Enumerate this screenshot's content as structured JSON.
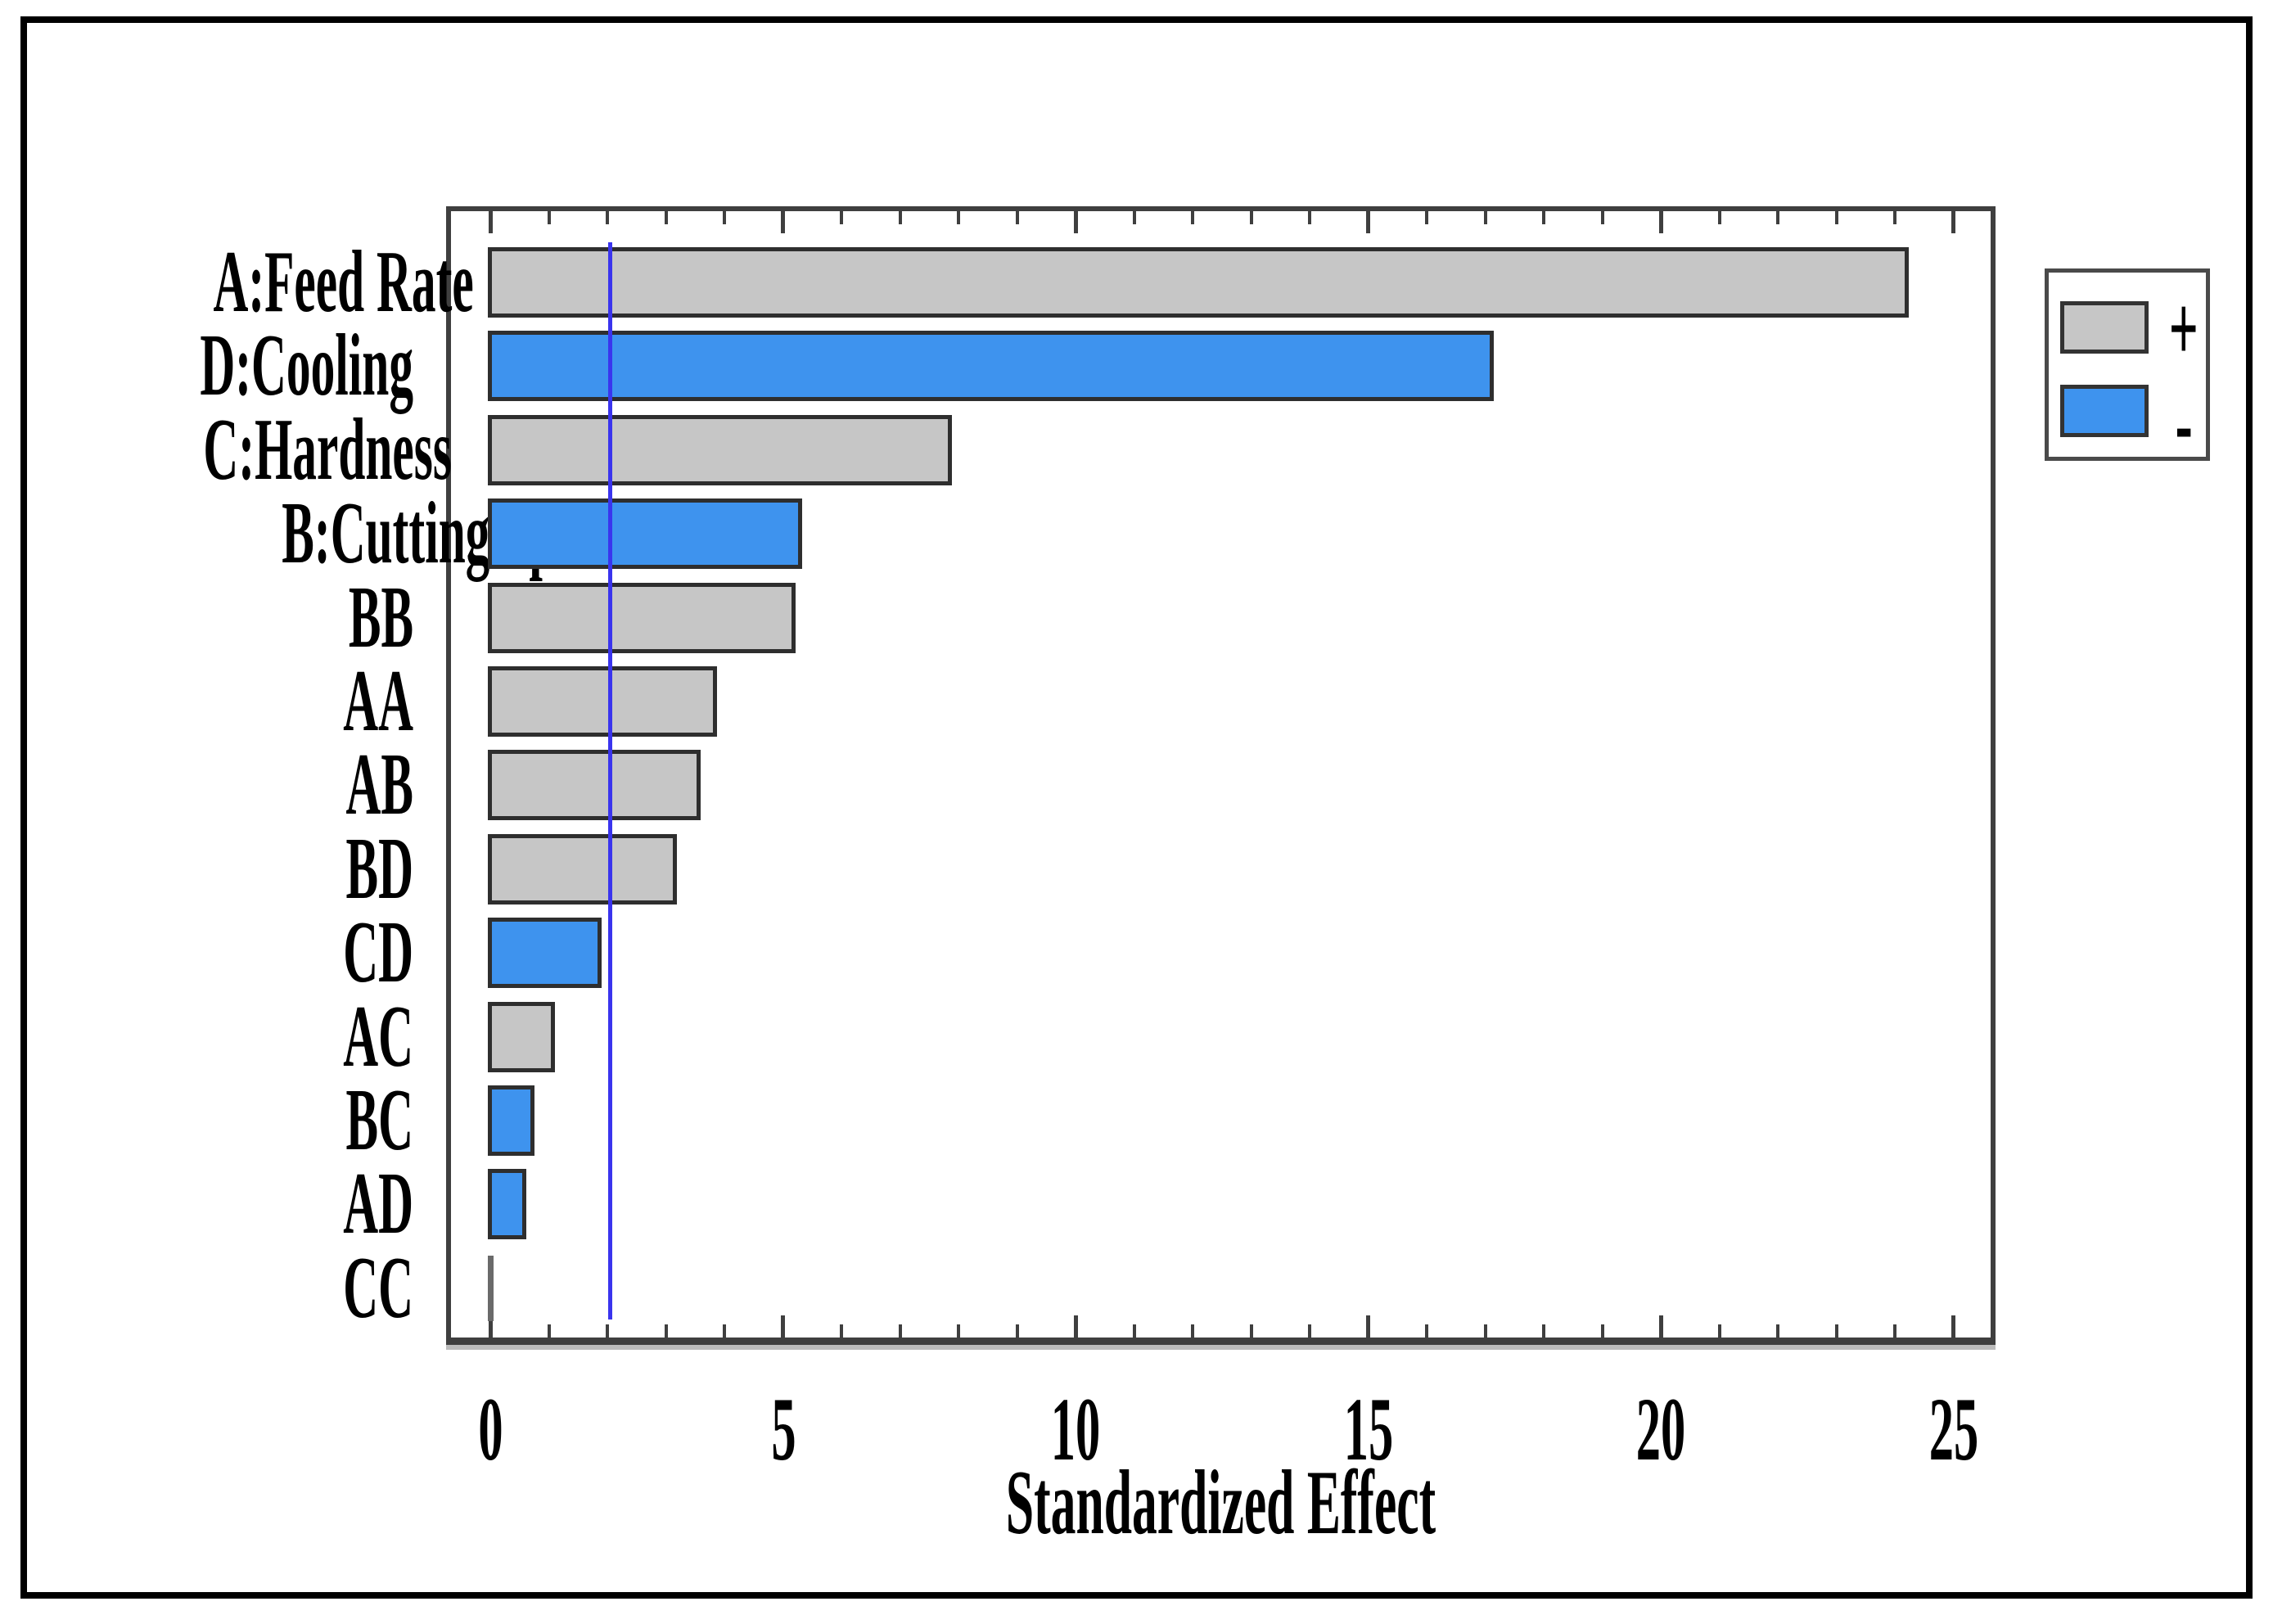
{
  "colors": {
    "positive": "#C6C6C6",
    "negative": "#3E93EE",
    "bar_border": "#2E2E2E",
    "frame": "#3F3F3F",
    "reference_line": "#3A34EE",
    "collapsed_bar": "#6A6A6A",
    "text": "#000000"
  },
  "legend": {
    "positive_label": "+",
    "negative_label": "-"
  },
  "chart_data": {
    "type": "bar",
    "orientation": "horizontal",
    "title": "",
    "xlabel": "Standardized Effect",
    "ylabel": "",
    "categories": [
      "A:Feed Rate",
      "D:Cooling",
      "C:Hardness",
      "B:Cutting Speed",
      "BB",
      "AA",
      "AB",
      "BD",
      "CD",
      "AC",
      "BC",
      "AD",
      "CC"
    ],
    "values": [
      24.2,
      17.1,
      7.85,
      5.28,
      5.18,
      3.83,
      3.55,
      3.15,
      1.86,
      1.06,
      0.71,
      0.57,
      0.04
    ],
    "signs": [
      "+",
      "-",
      "+",
      "-",
      "+",
      "+",
      "+",
      "+",
      "-",
      "+",
      "-",
      "-",
      "+"
    ],
    "x_axis": {
      "min": -0.75,
      "max": 25.7,
      "major_ticks": [
        0,
        5,
        10,
        15,
        20,
        25
      ],
      "minor_tick_step": 1,
      "grid": false
    },
    "reference_line": {
      "value": 2.04
    },
    "legend_entries": [
      {
        "label": "+",
        "meaning": "positive effect",
        "color": "#C6C6C6"
      },
      {
        "label": "-",
        "meaning": "negative effect",
        "color": "#3E93EE"
      }
    ],
    "legend_position": "top-right-outside"
  }
}
